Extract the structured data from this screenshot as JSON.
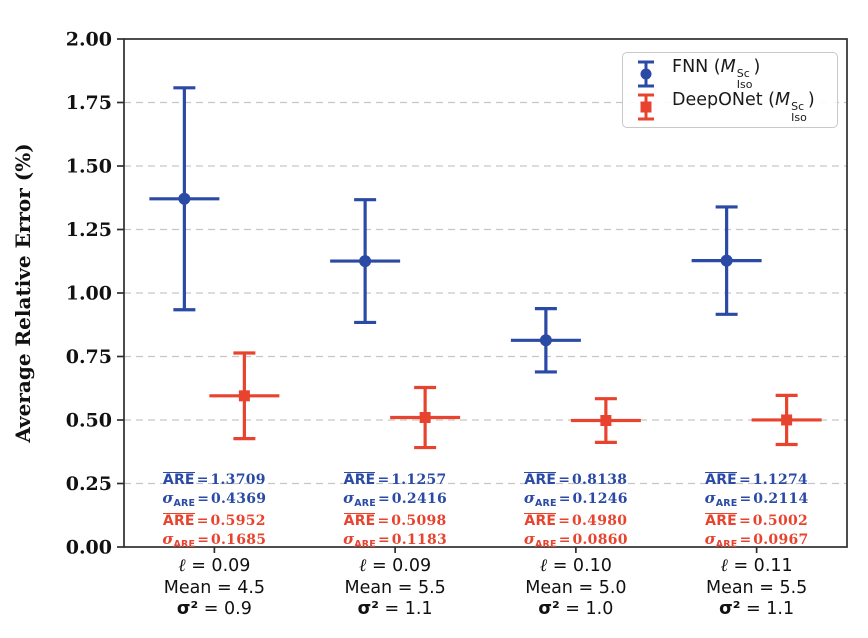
{
  "chart_data": {
    "type": "errorbar",
    "title": "",
    "xlabel": "",
    "ylabel": "Average Relative Error (%)",
    "ylim": [
      0,
      2.0
    ],
    "yticks": [
      "0.00",
      "0.25",
      "0.50",
      "0.75",
      "1.00",
      "1.25",
      "1.50",
      "1.75",
      "2.00"
    ],
    "grid": "horizontal dashed",
    "legend_position": "upper right",
    "series": [
      {
        "name": "FNN (M_Iso^Sc)",
        "color": "#2b4aa5",
        "marker": "circle",
        "means": [
          1.3709,
          1.1257,
          0.8138,
          1.1274
        ],
        "stds": [
          0.4369,
          0.2416,
          0.1246,
          0.2114
        ]
      },
      {
        "name": "DeepONet (M_Iso^Sc)",
        "color": "#e8432e",
        "marker": "square",
        "means": [
          0.5952,
          0.5098,
          0.498,
          0.5002
        ],
        "stds": [
          0.1685,
          0.1183,
          0.086,
          0.0967
        ]
      }
    ],
    "legend": {
      "items": [
        {
          "prefix": "FNN (",
          "sym": "M",
          "sup": "Sc",
          "sub": "Iso",
          "suffix": ")"
        },
        {
          "prefix": "DeepONet (",
          "sym": "M",
          "sup": "Sc",
          "sub": "Iso",
          "suffix": ")"
        }
      ]
    },
    "ann_labels": {
      "are": "ARE",
      "sigma": "σ",
      "sigma_sub": "ARE",
      "eq": "="
    },
    "groups": [
      {
        "l_sym": "ℓ",
        "l_val": " = 0.09",
        "mean": "Mean = 4.5",
        "sigma_sym": "σ²",
        "sigma_val": " = 0.9",
        "fnn_are": "1.3709",
        "fnn_std": "0.4369",
        "don_are": "0.5952",
        "don_std": "0.1685"
      },
      {
        "l_sym": "ℓ",
        "l_val": " = 0.09",
        "mean": "Mean = 5.5",
        "sigma_sym": "σ²",
        "sigma_val": " = 1.1",
        "fnn_are": "1.1257",
        "fnn_std": "0.2416",
        "don_are": "0.5098",
        "don_std": "0.1183"
      },
      {
        "l_sym": "ℓ",
        "l_val": " = 0.10",
        "mean": "Mean = 5.0",
        "sigma_sym": "σ²",
        "sigma_val": " = 1.0",
        "fnn_are": "0.8138",
        "fnn_std": "0.1246",
        "don_are": "0.4980",
        "don_std": "0.0860"
      },
      {
        "l_sym": "ℓ",
        "l_val": " = 0.11",
        "mean": "Mean = 5.5",
        "sigma_sym": "σ²",
        "sigma_val": " = 1.1",
        "fnn_are": "1.1274",
        "fnn_std": "0.2114",
        "don_are": "0.5002",
        "don_std": "0.0967"
      }
    ]
  }
}
